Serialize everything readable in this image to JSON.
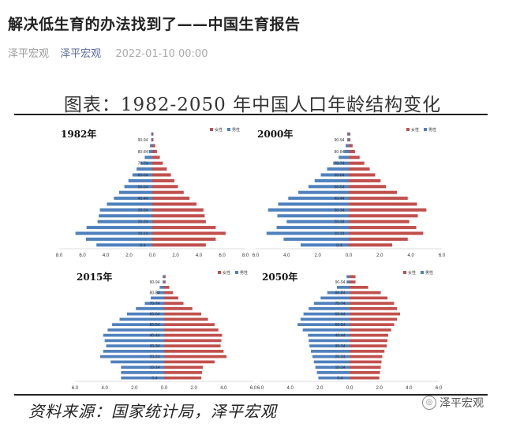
{
  "article": {
    "title": "解决低生育的办法找到了——中国生育报告",
    "author": "泽平宏观",
    "account": "泽平宏观",
    "date": "2022-01-10 00:00"
  },
  "figure": {
    "title": "图表：1982-2050 年中国人口年龄结构变化",
    "source": "资料来源：国家统计局，泽平宏观",
    "watermark": "泽平宏观",
    "colors": {
      "female": "#c0504d",
      "male": "#4f81bd"
    }
  },
  "chart_data": [
    {
      "type": "bar",
      "subtype": "population-pyramid",
      "title": "1982年",
      "legend": [
        "女性",
        "男性"
      ],
      "categories": [
        "0-4",
        "10-14",
        "20-24",
        "30-34",
        "40-44",
        "50-54",
        "60-64",
        "70-74",
        "80-84",
        "90-94"
      ],
      "series": [
        {
          "name": "女性",
          "values": [
            4.6,
            6.3,
            4.6,
            4.4,
            3.2,
            2.2,
            1.6,
            0.9,
            0.4,
            0.1
          ]
        },
        {
          "name": "男性",
          "values": [
            4.8,
            6.6,
            4.7,
            4.5,
            3.3,
            2.4,
            1.7,
            1.0,
            0.3,
            0.1
          ]
        }
      ],
      "xlim": [
        -8,
        8
      ],
      "xticks": [
        "8.0",
        "6.0",
        "4.0",
        "2.0",
        "0.0",
        "2.0",
        "4.0",
        "6.0",
        "8.0"
      ]
    },
    {
      "type": "bar",
      "subtype": "population-pyramid",
      "title": "2000年",
      "legend": [
        "女性",
        "男性"
      ],
      "categories": [
        "0-4",
        "10-14",
        "20-24",
        "30-34",
        "40-44",
        "50-54",
        "60-64",
        "70-74",
        "80-84",
        "90-94"
      ],
      "series": [
        {
          "name": "女性",
          "values": [
            2.8,
            4.8,
            3.9,
            5.0,
            3.8,
            2.4,
            1.7,
            1.0,
            0.4,
            0.1
          ]
        },
        {
          "name": "男性",
          "values": [
            3.1,
            5.3,
            4.0,
            5.2,
            3.9,
            2.6,
            1.8,
            1.0,
            0.3,
            0.1
          ]
        }
      ],
      "xlim": [
        -6,
        6
      ],
      "xticks": [
        "6.0",
        "4.0",
        "2.0",
        "0.0",
        "2.0",
        "4.0",
        "6.0"
      ]
    },
    {
      "type": "bar",
      "subtype": "population-pyramid",
      "title": "2015年",
      "legend": [
        "女性",
        "男性"
      ],
      "categories": [
        "0-4",
        "10-14",
        "20-24",
        "30-34",
        "40-44",
        "50-54",
        "60-64",
        "70-74",
        "80-84",
        "90-94"
      ],
      "series": [
        {
          "name": "女性",
          "values": [
            2.5,
            2.6,
            4.2,
            3.8,
            3.9,
            3.4,
            2.5,
            1.3,
            0.6,
            0.1
          ]
        },
        {
          "name": "男性",
          "values": [
            2.9,
            2.9,
            4.3,
            3.9,
            4.1,
            3.5,
            2.5,
            1.3,
            0.5,
            0.1
          ]
        }
      ],
      "xlim": [
        -6,
        6
      ],
      "xticks": [
        "6.0",
        "4.0",
        "2.0",
        "0.0",
        "2.0",
        "4.0",
        "6.0"
      ]
    },
    {
      "type": "bar",
      "subtype": "population-pyramid",
      "title": "2050年",
      "legend": [
        "女性",
        "男性"
      ],
      "categories": [
        "0-4",
        "10-14",
        "20-24",
        "30-34",
        "40-44",
        "50-54",
        "60-64",
        "70-74",
        "80-84",
        "90-94"
      ],
      "series": [
        {
          "name": "女性",
          "values": [
            2.0,
            2.1,
            2.2,
            2.5,
            2.6,
            3.0,
            3.4,
            3.0,
            2.1,
            0.4
          ]
        },
        {
          "name": "男性",
          "values": [
            2.1,
            2.3,
            2.5,
            2.7,
            2.8,
            3.5,
            3.1,
            2.4,
            1.5,
            0.2
          ]
        }
      ],
      "xlim": [
        -6,
        6
      ],
      "xticks": [
        "6.0",
        "4.0",
        "2.0",
        "0.0",
        "2.0",
        "4.0",
        "6.0"
      ]
    }
  ]
}
